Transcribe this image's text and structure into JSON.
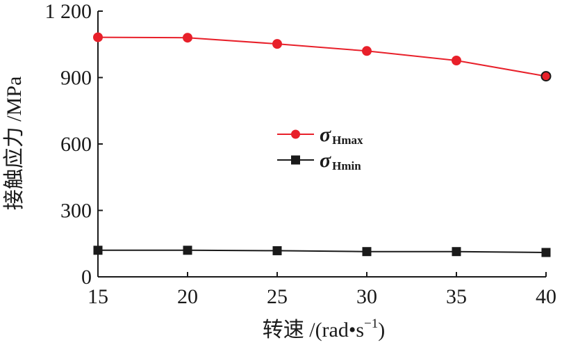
{
  "chart_data": {
    "type": "line",
    "xlabel": "转速 /(rad•s",
    "xlabel_sup": "−1",
    "xlabel_tail": ")",
    "ylabel": "接触应力 /MPa",
    "xlim": [
      15,
      40
    ],
    "ylim": [
      0,
      1200
    ],
    "x_ticks": [
      15,
      20,
      25,
      30,
      35,
      40
    ],
    "x_tick_labels": [
      "15",
      "20",
      "25",
      "30",
      "35",
      "40"
    ],
    "y_ticks": [
      0,
      300,
      600,
      900,
      1200
    ],
    "y_tick_labels": [
      "0",
      "300",
      "600",
      "900",
      "1 200"
    ],
    "grid": false,
    "legend_position": "center",
    "x": [
      15,
      20,
      25,
      30,
      35,
      40
    ],
    "series": [
      {
        "name": "σ",
        "name_sub": "Hmax",
        "values": [
          1082,
          1080,
          1052,
          1020,
          977,
          906
        ],
        "color": "#e8202a",
        "marker": "circle"
      },
      {
        "name": "σ",
        "name_sub": "Hmin",
        "values": [
          120,
          120,
          118,
          114,
          114,
          110
        ],
        "color": "#1a1a1a",
        "marker": "square"
      }
    ]
  }
}
